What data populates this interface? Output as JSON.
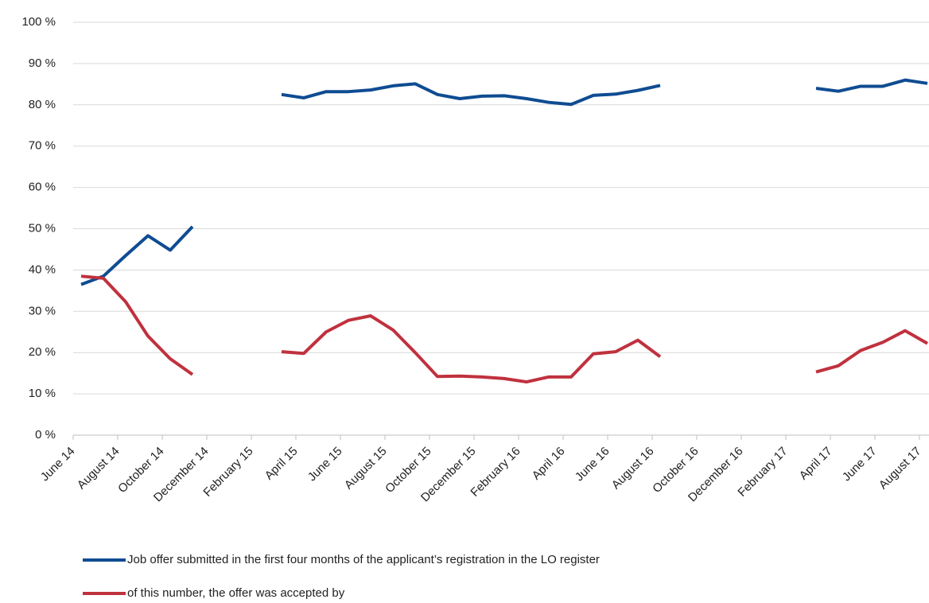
{
  "chart_data": {
    "type": "line",
    "categories": [
      "June 14",
      null,
      "August 14",
      null,
      "October 14",
      null,
      "December 14",
      null,
      "February 15",
      null,
      "April 15",
      null,
      "June 15",
      null,
      "August 15",
      null,
      "October 15",
      null,
      "December 15",
      null,
      "February 16",
      null,
      "April 16",
      null,
      "June 16",
      null,
      "August 16",
      null,
      "October 16",
      null,
      "December 16",
      null,
      "February 17",
      null,
      "April 17",
      null,
      "June 17",
      null,
      "August 17"
    ],
    "series": [
      {
        "name": "Job offer submitted in the first four months of the applicant’s registration in the LO register",
        "color": "#0f4c92",
        "values": [
          36.5,
          38.5,
          43.5,
          48.3,
          44.8,
          50.5,
          null,
          null,
          null,
          82.5,
          81.7,
          83.2,
          83.2,
          83.6,
          84.6,
          85.1,
          82.5,
          81.5,
          82.1,
          82.2,
          81.5,
          80.6,
          80.1,
          82.3,
          82.6,
          83.5,
          84.7,
          null,
          null,
          null,
          null,
          null,
          null,
          84.0,
          83.3,
          84.5,
          84.5,
          86.0,
          85.2
        ]
      },
      {
        "name": "of this number, the offer was accepted by",
        "color": "#c0313e",
        "values": [
          38.5,
          38.0,
          32.3,
          24.0,
          18.5,
          14.7,
          null,
          null,
          null,
          20.2,
          19.8,
          25.0,
          27.8,
          28.9,
          25.5,
          20.0,
          14.2,
          14.3,
          14.1,
          13.7,
          12.9,
          14.1,
          14.1,
          19.7,
          20.2,
          23.0,
          19.0,
          null,
          null,
          null,
          null,
          null,
          null,
          15.3,
          16.8,
          20.5,
          22.5,
          25.3,
          22.2
        ]
      }
    ],
    "ylim": [
      0,
      100
    ],
    "yticks": [
      {
        "value": 0,
        "label": "0 %"
      },
      {
        "value": 10,
        "label": "10 %"
      },
      {
        "value": 20,
        "label": "20 %"
      },
      {
        "value": 30,
        "label": "30 %"
      },
      {
        "value": 40,
        "label": "40 %"
      },
      {
        "value": 50,
        "label": "50 %"
      },
      {
        "value": 60,
        "label": "60 %"
      },
      {
        "value": 70,
        "label": "70 %"
      },
      {
        "value": 80,
        "label": "80 %"
      },
      {
        "value": 90,
        "label": "90 %"
      },
      {
        "value": 100,
        "label": "100 %"
      }
    ],
    "grid": true,
    "legend": "bottom"
  }
}
